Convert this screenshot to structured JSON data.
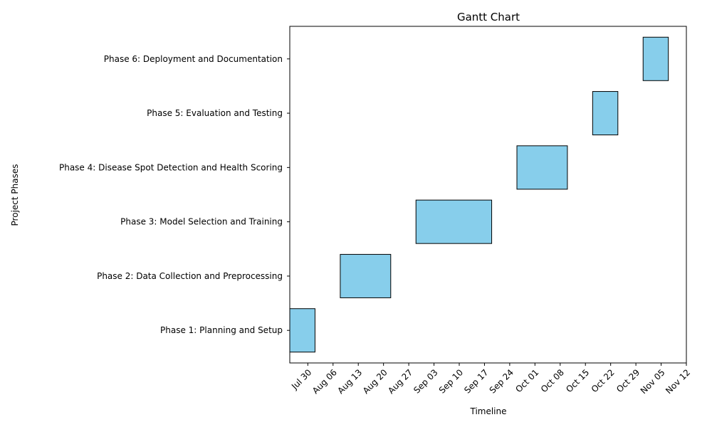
{
  "chart_data": {
    "type": "gantt",
    "title": "Gantt Chart",
    "xlabel": "Timeline",
    "ylabel": "Project Phases",
    "bar_color": "#87CEEB",
    "edge_color": "#000000",
    "xlim": [
      "2024-07-25",
      "2024-11-12"
    ],
    "x_ticks": [
      "2024-07-30",
      "2024-08-06",
      "2024-08-13",
      "2024-08-20",
      "2024-08-27",
      "2024-09-03",
      "2024-09-10",
      "2024-09-17",
      "2024-09-24",
      "2024-10-01",
      "2024-10-08",
      "2024-10-15",
      "2024-10-22",
      "2024-10-29",
      "2024-11-05",
      "2024-11-12"
    ],
    "x_tick_labels": [
      "Jul 30",
      "Aug 06",
      "Aug 13",
      "Aug 20",
      "Aug 27",
      "Sep 03",
      "Sep 10",
      "Sep 17",
      "Sep 24",
      "Oct 01",
      "Oct 08",
      "Oct 15",
      "Oct 22",
      "Oct 29",
      "Nov 05",
      "Nov 12"
    ],
    "tasks": [
      {
        "name": "Phase 1: Planning and Setup",
        "start": "2024-07-25",
        "end": "2024-08-01"
      },
      {
        "name": "Phase 2: Data Collection and Preprocessing",
        "start": "2024-08-08",
        "end": "2024-08-22"
      },
      {
        "name": "Phase 3: Model Selection and Training",
        "start": "2024-08-29",
        "end": "2024-09-19"
      },
      {
        "name": "Phase 4: Disease Spot Detection and Health Scoring",
        "start": "2024-09-26",
        "end": "2024-10-10"
      },
      {
        "name": "Phase 5: Evaluation and Testing",
        "start": "2024-10-17",
        "end": "2024-10-24"
      },
      {
        "name": "Phase 6: Deployment and Documentation",
        "start": "2024-10-31",
        "end": "2024-11-07"
      }
    ]
  }
}
